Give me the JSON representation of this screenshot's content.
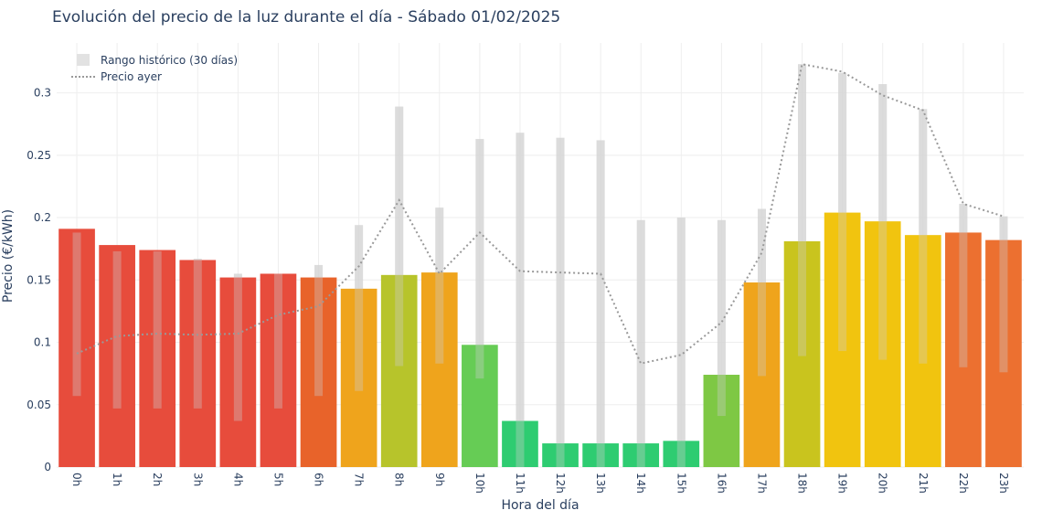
{
  "chart_data": {
    "type": "bar",
    "title": "Evolución del precio de la luz durante el día - Sábado 01/02/2025",
    "xlabel": "Hora del día",
    "ylabel": "Precio (€/kWh)",
    "ylim": [
      0,
      0.34
    ],
    "yticks": [
      0,
      0.05,
      0.1,
      0.15,
      0.2,
      0.25,
      0.3
    ],
    "ytick_labels": [
      "0",
      "0.05",
      "0.1",
      "0.15",
      "0.2",
      "0.25",
      "0.3"
    ],
    "categories": [
      "0h",
      "1h",
      "2h",
      "3h",
      "4h",
      "5h",
      "6h",
      "7h",
      "8h",
      "9h",
      "10h",
      "11h",
      "12h",
      "13h",
      "14h",
      "15h",
      "16h",
      "17h",
      "18h",
      "19h",
      "20h",
      "21h",
      "22h",
      "23h"
    ],
    "values": [
      0.191,
      0.178,
      0.174,
      0.166,
      0.152,
      0.155,
      0.152,
      0.143,
      0.154,
      0.156,
      0.098,
      0.037,
      0.019,
      0.019,
      0.019,
      0.021,
      0.074,
      0.148,
      0.181,
      0.204,
      0.197,
      0.186,
      0.188,
      0.182
    ],
    "bar_colors": [
      "#e74c3c",
      "#e74c3c",
      "#e74c3c",
      "#e74c3c",
      "#e74c3c",
      "#e74c3c",
      "#e8632a",
      "#efa41c",
      "#b7c42b",
      "#efa41c",
      "#66cc55",
      "#2ecc71",
      "#2ecc71",
      "#2ecc71",
      "#2ecc71",
      "#2ecc71",
      "#7ec844",
      "#efa41c",
      "#c9c41e",
      "#f1c40f",
      "#f1c40f",
      "#f1c40f",
      "#ec7030",
      "#ec7030"
    ],
    "series": [
      {
        "name": "Rango histórico (30 días)",
        "type": "range",
        "min": [
          0.057,
          0.047,
          0.047,
          0.047,
          0.037,
          0.047,
          0.057,
          0.061,
          0.081,
          0.083,
          0.071,
          0.0,
          0.0,
          0.0,
          0.0,
          0.0,
          0.041,
          0.073,
          0.089,
          0.093,
          0.086,
          0.083,
          0.08,
          0.076
        ],
        "max": [
          0.188,
          0.173,
          0.173,
          0.167,
          0.155,
          0.155,
          0.162,
          0.194,
          0.289,
          0.208,
          0.263,
          0.268,
          0.264,
          0.262,
          0.198,
          0.2,
          0.198,
          0.207,
          0.323,
          0.316,
          0.307,
          0.287,
          0.211,
          0.201
        ],
        "color": "#d9d9d9"
      },
      {
        "name": "Precio ayer",
        "type": "line",
        "values": [
          0.091,
          0.105,
          0.107,
          0.106,
          0.107,
          0.122,
          0.129,
          0.161,
          0.214,
          0.155,
          0.188,
          0.157,
          0.156,
          0.155,
          0.083,
          0.09,
          0.116,
          0.172,
          0.323,
          0.317,
          0.298,
          0.286,
          0.211,
          0.201
        ],
        "color": "#999999"
      }
    ],
    "legend_position": "top-left"
  }
}
